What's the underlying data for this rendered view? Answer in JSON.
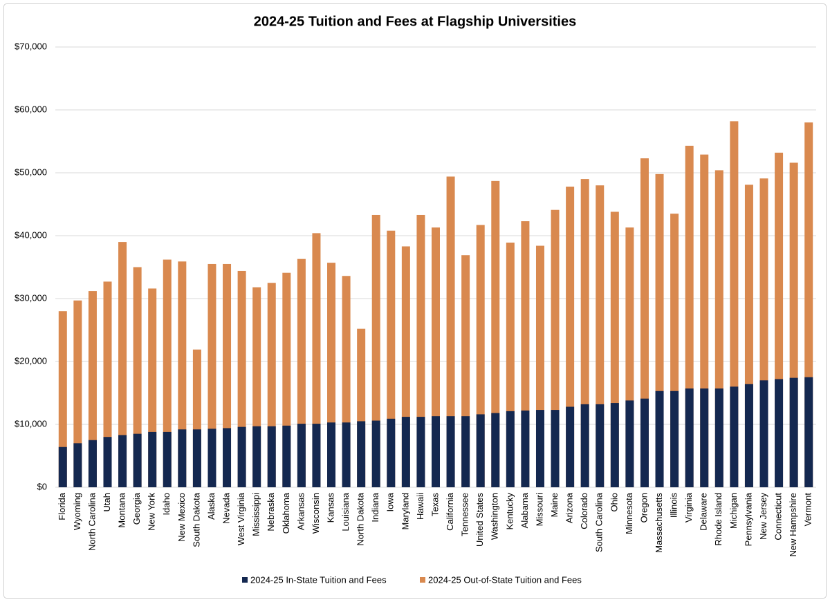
{
  "chart_data": {
    "type": "bar",
    "title": "2024-25 Tuition and Fees at Flagship Universities",
    "categories": [
      "Florida",
      "Wyoming",
      "North Carolina",
      "Utah",
      "Montana",
      "Georgia",
      "New York",
      "Idaho",
      "New Mexico",
      "South Dakota",
      "Alaska",
      "Nevada",
      "West Virginia",
      "Mississippi",
      "Nebraska",
      "Oklahoma",
      "Arkansas",
      "Wisconsin",
      "Kansas",
      "Louisiana",
      "North Dakota",
      "Indiana",
      "Iowa",
      "Maryland",
      "Hawaii",
      "Texas",
      "California",
      "Tennessee",
      "United States",
      "Washington",
      "Kentucky",
      "Alabama",
      "Missouri",
      "Maine",
      "Arizona",
      "Colorado",
      "South Carolina",
      "Ohio",
      "Minnesota",
      "Oregon",
      "Massachusetts",
      "Illinois",
      "Virginia",
      "Delaware",
      "Rhode Island",
      "Michigan",
      "Pennsylvania",
      "New Jersey",
      "Connecticut",
      "New Hampshire",
      "Vermont"
    ],
    "series": [
      {
        "name": "2024-25 In-State Tuition and Fees",
        "color": "#142850",
        "values": [
          6400,
          7000,
          7500,
          8000,
          8300,
          8500,
          8800,
          8800,
          9200,
          9200,
          9300,
          9400,
          9600,
          9700,
          9700,
          9800,
          10100,
          10100,
          10300,
          10300,
          10500,
          10600,
          10900,
          11200,
          11200,
          11300,
          11300,
          11300,
          11600,
          11800,
          12100,
          12200,
          12300,
          12300,
          12800,
          13200,
          13200,
          13400,
          13800,
          14100,
          15300,
          15300,
          15700,
          15700,
          15700,
          16000,
          16400,
          17000,
          17200,
          17400,
          17500
        ]
      },
      {
        "name": "2024-25 Out-of-State Tuition and Fees",
        "color": "#d9894f",
        "values": [
          28000,
          29700,
          31200,
          32700,
          39000,
          35000,
          31600,
          36200,
          35900,
          21900,
          35500,
          35500,
          34400,
          31800,
          32500,
          34100,
          36300,
          40400,
          35700,
          33600,
          25200,
          43300,
          40800,
          38300,
          43300,
          41300,
          49400,
          36900,
          41700,
          48700,
          38900,
          42300,
          38400,
          44100,
          47800,
          49000,
          48000,
          43800,
          41300,
          52300,
          49800,
          43500,
          54300,
          52900,
          50400,
          58200,
          48100,
          49100,
          53200,
          51600,
          58000
        ]
      }
    ],
    "ylim": [
      0,
      70000
    ],
    "yticks": [
      {
        "value": 0,
        "label": "$0"
      },
      {
        "value": 10000,
        "label": "$10,000"
      },
      {
        "value": 20000,
        "label": "$20,000"
      },
      {
        "value": 30000,
        "label": "$30,000"
      },
      {
        "value": 40000,
        "label": "$40,000"
      },
      {
        "value": 50000,
        "label": "$50,000"
      },
      {
        "value": 60000,
        "label": "$60,000"
      },
      {
        "value": 70000,
        "label": "$70,000"
      }
    ],
    "grid": true,
    "legend": "bottom"
  }
}
